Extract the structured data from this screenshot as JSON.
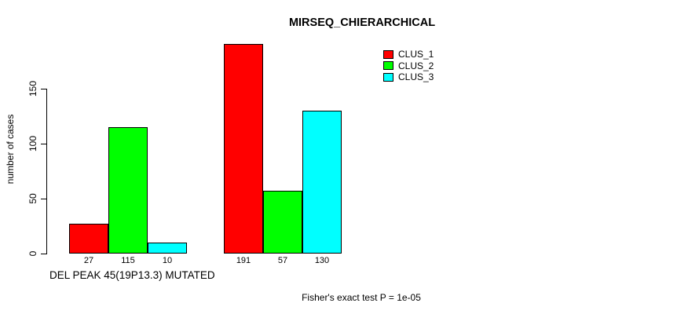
{
  "chart_data": {
    "type": "bar",
    "title": "MIRSEQ_CHIERARCHICAL",
    "ylabel": "number of cases",
    "xlabel": "DEL PEAK 45(19P13.3) MUTATED",
    "annotation": "Fisher's exact test P = 1e-05",
    "ylim": [
      0,
      150
    ],
    "yticks": [
      0,
      50,
      100,
      150
    ],
    "grid": false,
    "legend_position": "top-right",
    "groups": 2,
    "series": [
      {
        "name": "CLUS_1",
        "color": "#ff0000",
        "values": [
          27,
          191
        ]
      },
      {
        "name": "CLUS_2",
        "color": "#00ff00",
        "values": [
          115,
          57
        ]
      },
      {
        "name": "CLUS_3",
        "color": "#00ffff",
        "values": [
          10,
          130
        ]
      }
    ],
    "bar_value_labels": [
      [
        27,
        115,
        10
      ],
      [
        191,
        57,
        130
      ]
    ]
  }
}
